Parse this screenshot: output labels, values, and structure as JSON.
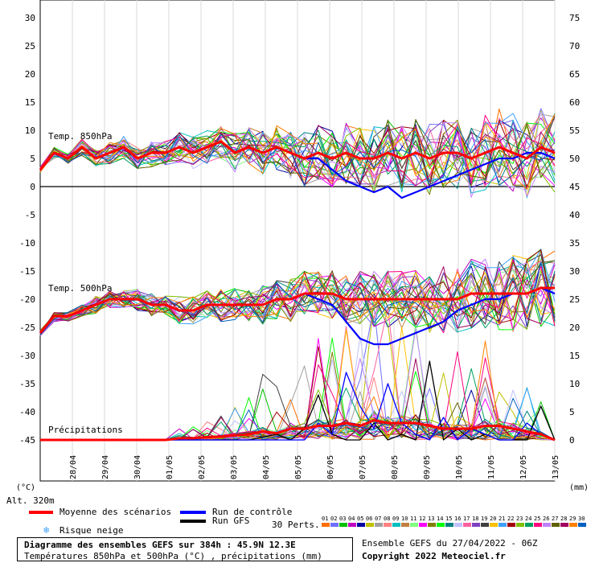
{
  "header": {
    "unit_left": "(°C)",
    "unit_right": "(mm)",
    "altitude": "Alt. 320m"
  },
  "sections": {
    "t850": "Temp. 850hPa",
    "t500": "Temp. 500hPa",
    "precip": "Précipitations"
  },
  "legend": {
    "mean": "Moyenne des scénarios",
    "control": "Run de contrôle",
    "gfs": "Run GFS",
    "snow": "Risque neige",
    "perts": "30 Perts.",
    "mean_color": "#ff0000",
    "control_color": "#0000ff",
    "gfs_color": "#000000"
  },
  "footer": {
    "title_line1": "Diagramme des ensembles GEFS sur 384h : 45.9N 12.3E",
    "title_line2": "Températures 850hPa et 500hPa (°C) , précipitations (mm)",
    "ensemble": "Ensemble GEFS du 27/04/2022 - 06Z",
    "copyright": "Copyright 2022 Meteociel.fr"
  },
  "perturbation_labels": [
    "01",
    "02",
    "03",
    "04",
    "05",
    "06",
    "07",
    "08",
    "09",
    "10",
    "11",
    "12",
    "13",
    "14",
    "15",
    "16",
    "17",
    "18",
    "19",
    "20",
    "21",
    "22",
    "23",
    "24",
    "25",
    "26",
    "27",
    "28",
    "29",
    "30"
  ],
  "perturbation_colors": [
    "#ff6f00",
    "#6f6fff",
    "#00c000",
    "#c000c0",
    "#0000a0",
    "#c0c000",
    "#a0a0a0",
    "#ff8080",
    "#00c0c0",
    "#c08040",
    "#80ff80",
    "#ff00ff",
    "#808000",
    "#00ff00",
    "#008080",
    "#c0c0ff",
    "#ff60a0",
    "#8040c0",
    "#404040",
    "#ffc000",
    "#40a0ff",
    "#a00000",
    "#80c000",
    "#00a060",
    "#ff0080",
    "#c080ff",
    "#606000",
    "#a00060",
    "#ff8000",
    "#0060c0"
  ],
  "chart_data": {
    "type": "line",
    "x_dates": [
      "28/04",
      "29/04",
      "30/04",
      "01/05",
      "02/05",
      "03/05",
      "04/05",
      "05/05",
      "06/05",
      "07/05",
      "08/05",
      "09/05",
      "10/05",
      "11/05",
      "12/05",
      "13/05"
    ],
    "left_axis": {
      "label": "(°C)",
      "ylim": [
        -50,
        30
      ],
      "ticks": [
        30,
        25,
        20,
        15,
        10,
        5,
        0,
        -5,
        -10,
        -15,
        -20,
        -25,
        -30,
        -35,
        -40,
        -45
      ]
    },
    "right_axis": {
      "label": "(mm)",
      "ylim": [
        0,
        75
      ],
      "ticks": [
        75,
        70,
        65,
        60,
        55,
        50,
        45,
        40,
        35,
        30,
        25,
        20,
        15,
        10,
        5,
        0
      ]
    },
    "t850_mean": [
      3,
      6,
      5,
      7,
      5,
      6,
      7,
      5,
      6,
      6,
      7,
      6,
      7,
      8,
      6,
      7,
      6,
      7,
      6,
      5,
      6,
      5,
      6,
      5,
      5,
      6,
      5,
      6,
      5,
      6,
      6,
      5,
      6,
      7,
      6,
      5,
      7,
      6
    ],
    "t850_spread": [
      0.5,
      1,
      1,
      1.5,
      1.5,
      2,
      2,
      2,
      2.5,
      2.5,
      3,
      3,
      3,
      3,
      3.5,
      3.5,
      4,
      4,
      4.5,
      5,
      5,
      5,
      5.5,
      5.5,
      6,
      6,
      6,
      6,
      6.5,
      6.5,
      6.5,
      7,
      7,
      7,
      7,
      7,
      7,
      7
    ],
    "t500_mean": [
      -26,
      -23,
      -23,
      -22,
      -21,
      -20,
      -20,
      -20,
      -21,
      -21,
      -22,
      -22,
      -21,
      -21,
      -21,
      -21,
      -21,
      -20,
      -20,
      -19,
      -19,
      -19,
      -20,
      -20,
      -20,
      -20,
      -20,
      -20,
      -20,
      -20,
      -20,
      -19,
      -19,
      -19,
      -19,
      -19,
      -18,
      -18
    ],
    "t500_spread": [
      0.5,
      1,
      1,
      1,
      1.5,
      1.5,
      1.5,
      2,
      2,
      2,
      2.5,
      2.5,
      2.5,
      3,
      3,
      3,
      3.5,
      3.5,
      4,
      4,
      4,
      4.5,
      4.5,
      5,
      5,
      5,
      5.5,
      5.5,
      6,
      6,
      6,
      6.5,
      6.5,
      7,
      7,
      7,
      7,
      7
    ],
    "t850_control": [
      3,
      6,
      5,
      7,
      5,
      6,
      7,
      5,
      6,
      6,
      7,
      6,
      7,
      8,
      6,
      7,
      6,
      7,
      6,
      5,
      5,
      3,
      1,
      0,
      -1,
      0,
      -2,
      -1,
      0,
      1,
      2,
      3,
      4,
      5,
      5,
      6,
      6,
      5
    ],
    "t500_control": [
      -26,
      -23,
      -23,
      -22,
      -21,
      -20,
      -20,
      -20,
      -21,
      -21,
      -22,
      -22,
      -21,
      -21,
      -21,
      -21,
      -21,
      -20,
      -20,
      -19,
      -20,
      -21,
      -24,
      -27,
      -28,
      -28,
      -27,
      -26,
      -25,
      -24,
      -22,
      -21,
      -20,
      -20,
      -19,
      -19,
      -18,
      -19
    ],
    "precip_mean_mm": [
      0,
      0,
      0,
      0,
      0,
      0,
      0,
      0,
      0,
      0,
      0.3,
      0.3,
      0.5,
      0.6,
      0.8,
      1,
      1.5,
      1.2,
      2,
      2,
      2.5,
      2.5,
      3,
      2.5,
      3.5,
      3,
      3,
      3,
      2.5,
      2,
      2,
      2,
      2.5,
      2.5,
      2,
      1.5,
      1,
      0
    ],
    "precip_gfs_mm": [
      0,
      0,
      0,
      0,
      0,
      0,
      0,
      0,
      0,
      0,
      0,
      0,
      0,
      0,
      0,
      0,
      0.5,
      1,
      0,
      2,
      8,
      1,
      0,
      0,
      3,
      0,
      1,
      0,
      14,
      0,
      2,
      0,
      1,
      0,
      0,
      0,
      6,
      0
    ],
    "precip_control_mm": [
      0,
      0,
      0,
      0,
      0,
      0,
      0,
      0,
      0,
      0,
      0,
      0,
      0,
      0,
      0,
      0,
      0,
      0,
      0,
      0,
      3,
      1,
      12,
      6,
      2,
      10,
      3,
      1,
      0,
      4,
      0,
      2,
      1,
      0,
      0,
      3,
      1,
      0
    ]
  }
}
